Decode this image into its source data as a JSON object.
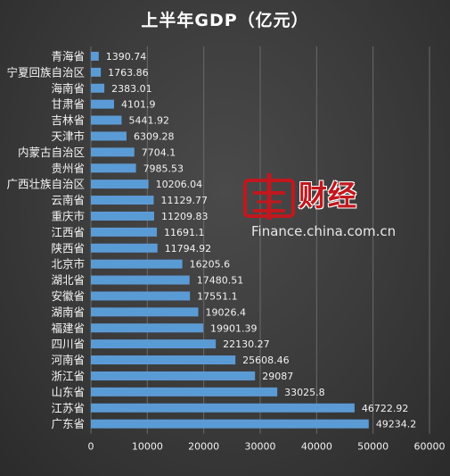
{
  "chart_data": {
    "type": "bar",
    "orientation": "horizontal",
    "title": "上半年GDP（亿元）",
    "categories": [
      "青海省",
      "宁夏回族自治区",
      "海南省",
      "甘肃省",
      "吉林省",
      "天津市",
      "内蒙古自治区",
      "贵州省",
      "广西壮族自治区",
      "云南省",
      "重庆市",
      "江西省",
      "陕西省",
      "北京市",
      "湖北省",
      "安徽省",
      "湖南省",
      "福建省",
      "四川省",
      "河南省",
      "浙江省",
      "山东省",
      "江苏省",
      "广东省"
    ],
    "values": [
      1390.74,
      1763.86,
      2383.01,
      4101.9,
      5441.92,
      6309.28,
      7704.1,
      7985.53,
      10206.04,
      11129.77,
      11209.83,
      11691.1,
      11794.92,
      16205.6,
      17480.51,
      17551.1,
      19026.4,
      19901.39,
      22130.27,
      25608.46,
      29087,
      33025.8,
      46722.92,
      49234.2
    ],
    "data_labels": [
      "1390.74",
      "1763.86",
      "2383.01",
      "4101.9",
      "5441.92",
      "6309.28",
      "7704.1",
      "7985.53",
      "10206.04",
      "11129.77",
      "11209.83",
      "11691.1",
      "11794.92",
      "16205.6",
      "17480.51",
      "17551.1",
      "19026.4",
      "19901.39",
      "22130.27",
      "25608.46",
      "29087",
      "33025.8",
      "46722.92",
      "49234.2"
    ],
    "xlim": [
      0,
      60000
    ],
    "xticks": [
      "0",
      "10000",
      "20000",
      "30000",
      "40000",
      "50000",
      "60000"
    ],
    "grid": true,
    "legend": "none",
    "bar_color": "#5b9bd5"
  },
  "watermark": {
    "brand": "财经",
    "url": "Finance.china.com.cn",
    "logo_icon": "china-com-cn-logo-icon",
    "logo_color": "#c0181e"
  }
}
